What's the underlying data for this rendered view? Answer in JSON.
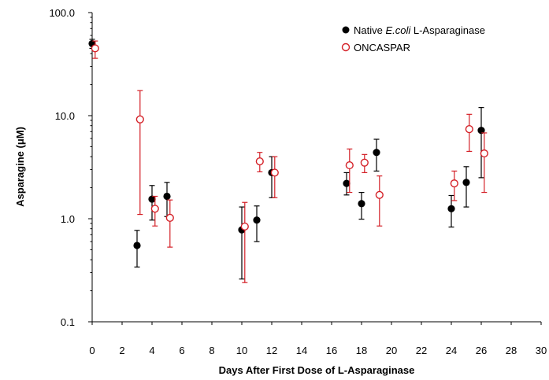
{
  "chart_data": {
    "type": "scatter",
    "xlabel": "Days After First Dose of L-Asparaginase",
    "ylabel": "Asparagine  (μM)",
    "xlim": [
      0,
      30
    ],
    "ylim": [
      0.1,
      100
    ],
    "yscale": "log",
    "x_ticks": [
      "0",
      "2",
      "4",
      "6",
      "8",
      "10",
      "12",
      "14",
      "16",
      "18",
      "20",
      "22",
      "24",
      "26",
      "28",
      "30"
    ],
    "y_ticks": [
      {
        "value": 0.1,
        "label": "0.1"
      },
      {
        "value": 1,
        "label": "1.0"
      },
      {
        "value": 10,
        "label": "10.0"
      },
      {
        "value": 100,
        "label": "100.0"
      }
    ],
    "grid": false,
    "legend_position": "top-right",
    "series": [
      {
        "label_prefix": "Native ",
        "label_italic": "E.coli",
        "label_suffix": " L-Asparaginase",
        "marker": "filled-circle",
        "color": "#000000",
        "points": [
          {
            "x": 0,
            "y": 50,
            "lo": 45,
            "hi": 55
          },
          {
            "x": 3,
            "y": 0.55,
            "lo": 0.34,
            "hi": 0.77
          },
          {
            "x": 4,
            "y": 1.55,
            "lo": 0.97,
            "hi": 2.1
          },
          {
            "x": 5,
            "y": 1.65,
            "lo": 1.05,
            "hi": 2.25
          },
          {
            "x": 10,
            "y": 0.78,
            "lo": 0.26,
            "hi": 1.3
          },
          {
            "x": 11,
            "y": 0.97,
            "lo": 0.6,
            "hi": 1.33
          },
          {
            "x": 12,
            "y": 2.8,
            "lo": 1.6,
            "hi": 4.0
          },
          {
            "x": 17,
            "y": 2.2,
            "lo": 1.7,
            "hi": 2.8
          },
          {
            "x": 18,
            "y": 1.4,
            "lo": 0.99,
            "hi": 1.8
          },
          {
            "x": 19,
            "y": 4.4,
            "lo": 2.9,
            "hi": 5.9
          },
          {
            "x": 24,
            "y": 1.25,
            "lo": 0.83,
            "hi": 1.68
          },
          {
            "x": 25,
            "y": 2.25,
            "lo": 1.3,
            "hi": 3.2
          },
          {
            "x": 26,
            "y": 7.2,
            "lo": 2.5,
            "hi": 12.0
          }
        ]
      },
      {
        "label": "ONCASPAR",
        "marker": "open-circle",
        "color": "#d42027",
        "points": [
          {
            "x": 0.2,
            "y": 45,
            "lo": 36,
            "hi": 53
          },
          {
            "x": 3.2,
            "y": 9.2,
            "lo": 1.1,
            "hi": 17.5
          },
          {
            "x": 4.2,
            "y": 1.25,
            "lo": 0.85,
            "hi": 1.65
          },
          {
            "x": 5.2,
            "y": 1.02,
            "lo": 0.53,
            "hi": 1.52
          },
          {
            "x": 10.2,
            "y": 0.84,
            "lo": 0.24,
            "hi": 1.44
          },
          {
            "x": 11.2,
            "y": 3.6,
            "lo": 2.85,
            "hi": 4.4
          },
          {
            "x": 12.2,
            "y": 2.8,
            "lo": 1.6,
            "hi": 4.0
          },
          {
            "x": 17.2,
            "y": 3.3,
            "lo": 1.8,
            "hi": 4.75
          },
          {
            "x": 18.2,
            "y": 3.5,
            "lo": 2.8,
            "hi": 4.2
          },
          {
            "x": 19.2,
            "y": 1.7,
            "lo": 0.85,
            "hi": 2.6
          },
          {
            "x": 24.2,
            "y": 2.2,
            "lo": 1.5,
            "hi": 2.9
          },
          {
            "x": 25.2,
            "y": 7.4,
            "lo": 4.5,
            "hi": 10.3
          },
          {
            "x": 26.2,
            "y": 4.3,
            "lo": 1.8,
            "hi": 6.8
          }
        ]
      }
    ]
  }
}
